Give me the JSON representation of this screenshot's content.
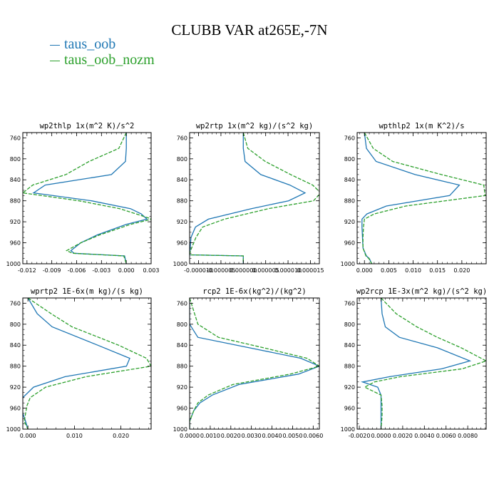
{
  "title": "CLUBB VAR at265E,-7N",
  "legend": [
    {
      "name": "taus_oob",
      "color": "#1f77b4"
    },
    {
      "name": "taus_oob_nozm",
      "color": "#2ca02c"
    }
  ],
  "chart_data": [
    {
      "type": "line",
      "title": "wp2thlp   1x(m^2 K)/s^2",
      "xlim": [
        -0.0125,
        0.003
      ],
      "ylim": [
        1000,
        750
      ],
      "xticks": [
        "-0.012",
        "-0.009",
        "-0.006",
        "-0.003",
        "0.000",
        "0.003"
      ],
      "xtick_values": [
        -0.012,
        -0.009,
        -0.006,
        -0.003,
        0.0,
        0.003
      ],
      "yticks": [
        760,
        800,
        840,
        880,
        920,
        960,
        1000
      ],
      "series": [
        {
          "name": "taus_oob",
          "y": [
            750,
            780,
            805,
            830,
            850,
            865,
            880,
            895,
            905,
            915,
            925,
            945,
            960,
            975,
            980,
            985,
            1000
          ],
          "x": [
            0.0,
            0.0,
            -0.0001,
            -0.0018,
            -0.0098,
            -0.0112,
            -0.0042,
            0.0005,
            0.0018,
            0.0025,
            0.0,
            -0.0035,
            -0.0055,
            -0.0067,
            -0.0063,
            -0.0002,
            0.0
          ]
        },
        {
          "name": "taus_oob_nozm",
          "y": [
            750,
            780,
            805,
            830,
            850,
            865,
            880,
            895,
            905,
            915,
            925,
            945,
            960,
            975,
            980,
            985,
            1000
          ],
          "x": [
            0.0,
            -0.0009,
            -0.0045,
            -0.0073,
            -0.0113,
            -0.0125,
            -0.0057,
            -0.0008,
            0.0012,
            0.0031,
            0.0005,
            -0.0032,
            -0.0055,
            -0.0072,
            -0.0065,
            -0.0003,
            0.0
          ]
        }
      ]
    },
    {
      "type": "line",
      "title": "wp2rtp   1x(m^2 kg)/(s^2 kg)",
      "xlim": [
        -1.2e-05,
        1.7e-05
      ],
      "ylim": [
        1000,
        750
      ],
      "xticks": [
        "-0.000010",
        "-0.000005",
        "0.000000",
        "0.000005",
        "0.000010",
        "0.000015"
      ],
      "xtick_values": [
        -1e-05,
        -5e-06,
        0.0,
        5e-06,
        1e-05,
        1.5e-05
      ],
      "yticks": [
        760,
        800,
        840,
        880,
        920,
        960,
        1000
      ],
      "series": [
        {
          "name": "taus_oob",
          "y": [
            750,
            780,
            805,
            830,
            850,
            865,
            880,
            895,
            915,
            930,
            950,
            975,
            983,
            985,
            1000
          ],
          "x": [
            0.0,
            0.0,
            4e-07,
            3.9e-06,
            1.04e-05,
            1.38e-05,
            1.01e-05,
            1.8e-06,
            -7.8e-06,
            -1.07e-05,
            -1.17e-05,
            -1.19e-05,
            -1.2e-05,
            0.0,
            0.0
          ]
        },
        {
          "name": "taus_oob_nozm",
          "y": [
            750,
            780,
            805,
            830,
            850,
            865,
            880,
            895,
            915,
            930,
            950,
            975,
            983,
            985,
            1000
          ],
          "x": [
            0.0,
            1e-06,
            4.9e-06,
            1.06e-05,
            1.55e-05,
            1.73e-05,
            1.57e-05,
            5.6e-06,
            -4.2e-06,
            -9.1e-06,
            -1.06e-05,
            -1.18e-05,
            -1.2e-05,
            0.0,
            0.0
          ]
        }
      ]
    },
    {
      "type": "line",
      "title": "wpthlp2   1x(m K^2)/s",
      "xlim": [
        -0.0015,
        0.025
      ],
      "ylim": [
        1000,
        750
      ],
      "xticks": [
        "0.000",
        "0.005",
        "0.010",
        "0.015",
        "0.020"
      ],
      "xtick_values": [
        0.0,
        0.005,
        0.01,
        0.015,
        0.02
      ],
      "yticks": [
        760,
        800,
        840,
        880,
        920,
        960,
        1000
      ],
      "series": [
        {
          "name": "taus_oob",
          "y": [
            750,
            780,
            805,
            830,
            850,
            870,
            890,
            905,
            915,
            930,
            950,
            970,
            985,
            990,
            1000
          ],
          "x": [
            0.0,
            0.0004,
            0.0024,
            0.0104,
            0.0195,
            0.0175,
            0.0045,
            0.0005,
            -0.0005,
            -0.0005,
            -0.0004,
            -0.0003,
            0.0004,
            0.001,
            0.0015
          ]
        },
        {
          "name": "taus_oob_nozm",
          "y": [
            750,
            780,
            805,
            830,
            850,
            870,
            890,
            905,
            915,
            930,
            950,
            970,
            985,
            990,
            1000
          ],
          "x": [
            0.0,
            0.0018,
            0.0058,
            0.0158,
            0.0245,
            0.0248,
            0.0085,
            0.002,
            0.0,
            -0.0002,
            -0.0003,
            -0.0003,
            0.0003,
            0.0009,
            0.0015
          ]
        }
      ]
    },
    {
      "type": "line",
      "title": "wprtp2   1E-6x(m kg)/(s kg)",
      "xlim": [
        -0.0011,
        0.0265
      ],
      "ylim": [
        1000,
        750
      ],
      "xticks": [
        "0.000",
        "0.010",
        "0.020"
      ],
      "xtick_values": [
        0.0,
        0.01,
        0.02
      ],
      "yticks": [
        760,
        800,
        840,
        880,
        920,
        960,
        1000
      ],
      "series": [
        {
          "name": "taus_oob",
          "y": [
            750,
            780,
            805,
            840,
            865,
            880,
            900,
            920,
            940,
            955,
            970,
            985,
            1000
          ],
          "x": [
            0.0,
            0.002,
            0.0052,
            0.015,
            0.0219,
            0.0212,
            0.008,
            0.0012,
            -0.0011,
            -0.0012,
            -0.0011,
            -0.0005,
            0.0
          ]
        },
        {
          "name": "taus_oob_nozm",
          "y": [
            750,
            780,
            805,
            840,
            865,
            880,
            900,
            920,
            940,
            955,
            970,
            985,
            1000
          ],
          "x": [
            0.0,
            0.005,
            0.0095,
            0.0195,
            0.0255,
            0.0265,
            0.0125,
            0.0038,
            0.0005,
            -0.0002,
            -0.0005,
            -0.0008,
            0.0
          ]
        }
      ]
    },
    {
      "type": "line",
      "title": "rcp2   1E-6x(kg^2)/(kg^2)",
      "xlim": [
        0.0,
        0.0063
      ],
      "ylim": [
        1000,
        750
      ],
      "xticks": [
        "0.0000",
        "0.0010",
        "0.0020",
        "0.0030",
        "0.0040",
        "0.0050",
        "0.0060"
      ],
      "xtick_values": [
        0.0,
        0.001,
        0.002,
        0.003,
        0.004,
        0.005,
        0.006
      ],
      "yticks": [
        760,
        800,
        840,
        880,
        920,
        960,
        1000
      ],
      "series": [
        {
          "name": "taus_oob",
          "y": [
            750,
            800,
            825,
            845,
            865,
            880,
            895,
            915,
            935,
            950,
            965,
            985,
            1000
          ],
          "x": [
            0.0,
            0.0,
            0.0004,
            0.0029,
            0.0054,
            0.0063,
            0.0053,
            0.0024,
            0.0011,
            0.0005,
            0.0002,
            0.0,
            0.0
          ]
        },
        {
          "name": "taus_oob_nozm",
          "y": [
            750,
            800,
            825,
            845,
            865,
            880,
            895,
            915,
            935,
            950,
            965,
            985,
            1000
          ],
          "x": [
            0.0,
            0.0004,
            0.0014,
            0.0036,
            0.0057,
            0.0063,
            0.0049,
            0.0021,
            0.0009,
            0.0004,
            0.0002,
            0.0,
            0.0
          ]
        }
      ]
    },
    {
      "type": "line",
      "title": "wp2rcp   1E-3x(m^2 kg)/(s^2 kg)",
      "xlim": [
        -0.0022,
        0.0097
      ],
      "ylim": [
        1000,
        750
      ],
      "xticks": [
        "-0.0020",
        "0.0000",
        "0.0020",
        "0.0040",
        "0.0060",
        "0.0080"
      ],
      "xtick_values": [
        -0.002,
        0.0,
        0.002,
        0.004,
        0.006,
        0.008
      ],
      "yticks": [
        760,
        800,
        840,
        880,
        920,
        960,
        1000
      ],
      "series": [
        {
          "name": "taus_oob",
          "y": [
            750,
            780,
            805,
            825,
            845,
            870,
            885,
            900,
            910,
            920,
            935,
            955,
            975,
            1000
          ],
          "x": [
            0.0,
            0.0001,
            0.0004,
            0.0017,
            0.0052,
            0.0082,
            0.0056,
            0.0008,
            -0.0017,
            -0.0003,
            0.0,
            0.0,
            0.0,
            0.0
          ]
        },
        {
          "name": "taus_oob_nozm",
          "y": [
            750,
            780,
            805,
            825,
            845,
            870,
            885,
            900,
            910,
            920,
            935,
            955,
            975,
            1000
          ],
          "x": [
            0.0,
            0.0014,
            0.0033,
            0.0052,
            0.0074,
            0.0097,
            0.0075,
            0.0018,
            -0.0006,
            -0.0015,
            0.0,
            0.0001,
            0.0001,
            0.0
          ]
        }
      ]
    }
  ]
}
